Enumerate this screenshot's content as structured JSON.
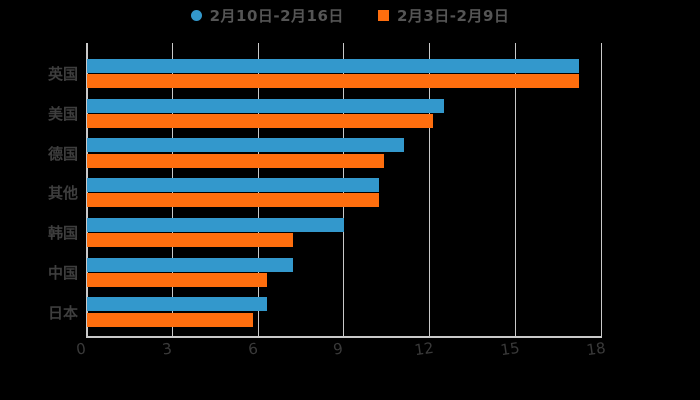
{
  "legend": [
    {
      "label": "2月10日-2月16日",
      "color": "#3398cc",
      "marker": "circle"
    },
    {
      "label": "2月3日-2月9日",
      "color": "#fe6e0e",
      "marker": "square"
    }
  ],
  "chart_data": {
    "type": "bar",
    "orientation": "horizontal",
    "title": "",
    "xlabel": "",
    "ylabel": "",
    "categories": [
      "英国",
      "美国",
      "德国",
      "其他",
      "韩国",
      "中国",
      "日本"
    ],
    "series": [
      {
        "name": "2月10日-2月16日",
        "color": "#3398cc",
        "values": [
          17.2,
          12.5,
          11.1,
          10.2,
          9.0,
          7.2,
          6.3
        ]
      },
      {
        "name": "2月3日-2月9日",
        "color": "#fe6e0e",
        "values": [
          17.2,
          12.1,
          10.4,
          10.2,
          7.2,
          6.3,
          5.8
        ]
      }
    ],
    "xlim": [
      0,
      18
    ],
    "xticks": [
      0,
      3,
      6,
      9,
      12,
      15,
      18
    ],
    "grid": true,
    "legend_position": "top-center",
    "background": "#000000",
    "gridline_color": "#c9c9c9",
    "label_color": "#3e3e3e"
  }
}
